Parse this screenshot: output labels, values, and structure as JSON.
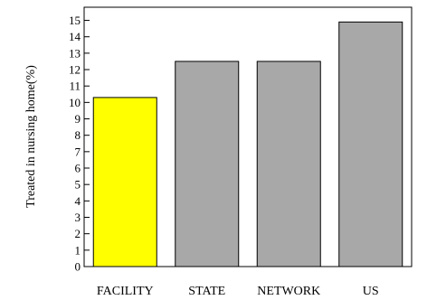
{
  "chart_data": {
    "type": "bar",
    "categories": [
      "FACILITY",
      "STATE",
      "NETWORK",
      "US"
    ],
    "values": [
      10.3,
      12.5,
      12.5,
      14.9
    ],
    "bar_colors": [
      "#ffff00",
      "#a8a8a8",
      "#a8a8a8",
      "#a8a8a8"
    ],
    "title": "",
    "xlabel": "",
    "ylabel": "Treated in nursing home(%)",
    "ylim": [
      0,
      15.8
    ],
    "yticks": [
      "0",
      "1",
      "2",
      "3",
      "4",
      "5",
      "6",
      "7",
      "8",
      "9",
      "10",
      "11",
      "12",
      "13",
      "14",
      "15"
    ],
    "grid": false,
    "legend": "none"
  }
}
